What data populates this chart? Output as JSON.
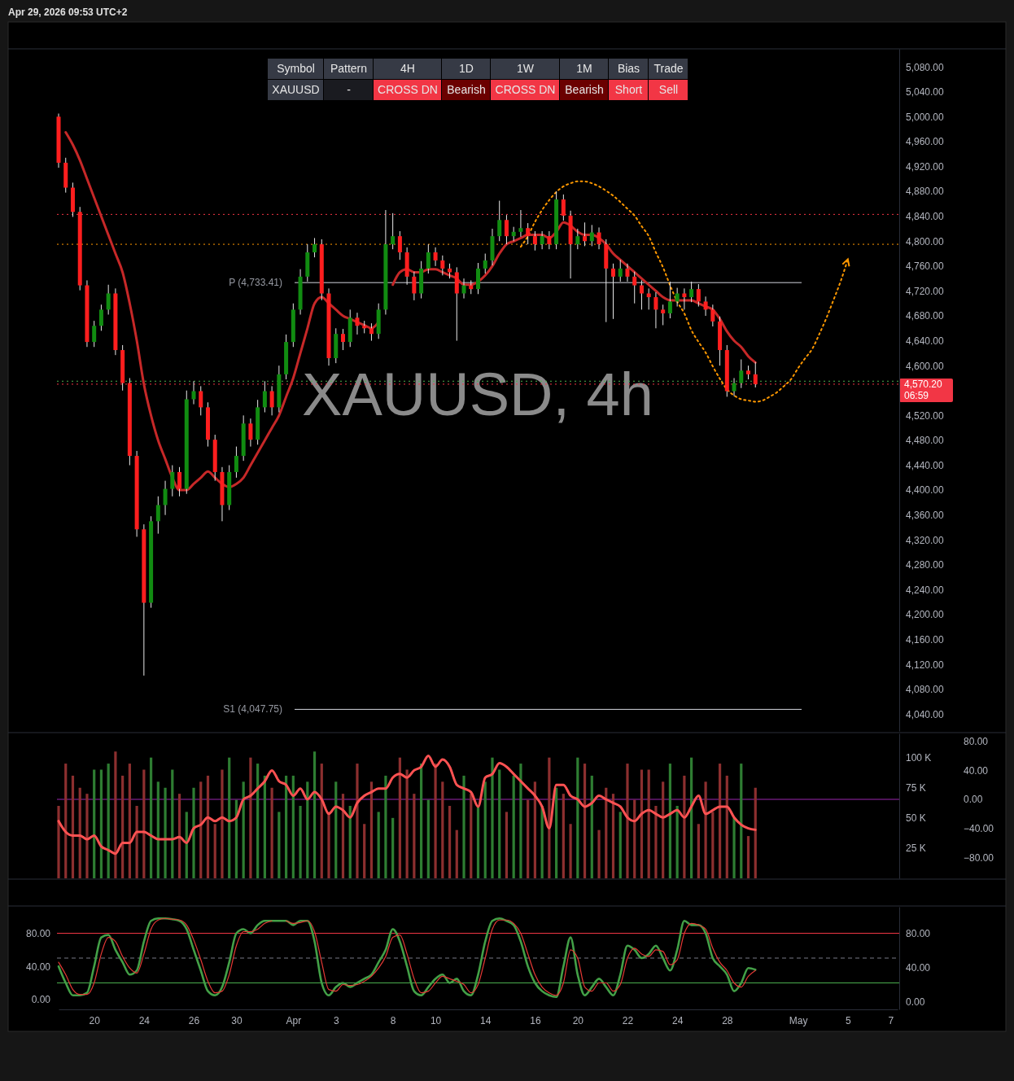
{
  "chart_data": [
    {
      "type": "candlestick",
      "title": "Apr 29, 2026 09:53 UTC+2",
      "tick_labels": "y",
      "annotations": [
        "Symbol",
        "Pattern",
        "4H",
        "1D",
        "1W",
        "1M",
        "Bias",
        "Trade",
        "XAUUSD",
        "-",
        "CROSS DN",
        "Bearish",
        "CROSS DN",
        "Bearish",
        "Short",
        "Sell",
        "XAUUSD, 4h",
        "06:59"
      ],
      "categories": [
        null,
        null,
        null,
        null,
        null,
        null,
        null,
        null,
        null,
        null,
        null,
        null,
        null,
        null,
        null,
        null,
        null,
        null,
        null,
        null,
        null,
        null,
        null,
        null,
        null,
        null,
        null,
        null,
        null,
        null,
        null,
        null,
        null,
        null,
        null,
        null,
        null,
        null,
        null,
        null,
        null,
        null,
        null,
        null,
        null,
        null,
        null,
        null,
        null,
        null,
        null,
        null,
        null,
        null,
        null,
        null,
        null,
        null,
        null,
        null,
        null,
        null,
        null,
        null,
        null,
        null,
        null,
        null,
        null,
        null,
        null,
        null,
        null,
        null,
        null,
        null,
        null,
        null,
        null,
        null,
        null,
        null,
        null,
        null,
        null,
        null,
        null,
        null,
        null,
        null,
        null,
        null,
        null,
        null,
        null,
        null,
        null,
        null,
        null,
        null,
        null,
        null,
        null,
        null,
        null,
        null,
        null,
        null,
        null,
        null,
        null,
        null,
        null,
        null,
        null,
        null,
        null,
        null,
        null
      ],
      "ylim": [
        4013,
        5109
      ],
      "yticks": [
        {
          "value": 4040,
          "label": "4,040.00"
        },
        {
          "value": 4080,
          "label": "4,080.00"
        },
        {
          "value": 4120,
          "label": "4,120.00"
        },
        {
          "value": 4160,
          "label": "4,160.00"
        },
        {
          "value": 4200,
          "label": "4,200.00"
        },
        {
          "value": 4240,
          "label": "4,240.00"
        },
        {
          "value": 4280,
          "label": "4,280.00"
        },
        {
          "value": 4320,
          "label": "4,320.00"
        },
        {
          "value": 4360,
          "label": "4,360.00"
        },
        {
          "value": 4400,
          "label": "4,400.00"
        },
        {
          "value": 4440,
          "label": "4,440.00"
        },
        {
          "value": 4480,
          "label": "4,480.00"
        },
        {
          "value": 4520,
          "label": "4,520.00"
        },
        {
          "value": 4600,
          "label": "4,600.00"
        },
        {
          "value": 4640,
          "label": "4,640.00"
        },
        {
          "value": 4680,
          "label": "4,680.00"
        },
        {
          "value": 4720,
          "label": "4,720.00"
        },
        {
          "value": 4760,
          "label": "4,760.00"
        },
        {
          "value": 4800,
          "label": "4,800.00"
        },
        {
          "value": 4840,
          "label": "4,840.00"
        },
        {
          "value": 4880,
          "label": "4,880.00"
        },
        {
          "value": 4920,
          "label": "4,920.00"
        },
        {
          "value": 4960,
          "label": "4,960.00"
        },
        {
          "value": 5000,
          "label": "5,000.00"
        },
        {
          "value": 5040,
          "label": "5,040.00"
        },
        {
          "value": 5080,
          "label": "5,080.00"
        }
      ],
      "ohlc": [
        [
          5000,
          5005,
          4918,
          4926
        ],
        [
          4926,
          4934,
          4878,
          4886
        ],
        [
          4886,
          4894,
          4839,
          4847
        ],
        [
          4847,
          4855,
          4721,
          4729
        ],
        [
          4729,
          4737,
          4630,
          4638
        ],
        [
          4638,
          4672,
          4630,
          4664
        ],
        [
          4664,
          4698,
          4656,
          4690
        ],
        [
          4690,
          4730,
          4682,
          4716
        ],
        [
          4716,
          4724,
          4617,
          4625
        ],
        [
          4625,
          4633,
          4560,
          4572
        ],
        [
          4572,
          4580,
          4440,
          4455
        ],
        [
          4455,
          4463,
          4325,
          4337
        ],
        [
          4337,
          4345,
          4102,
          4219
        ],
        [
          4219,
          4358,
          4211,
          4350
        ],
        [
          4350,
          4390,
          4330,
          4376
        ],
        [
          4376,
          4415,
          4360,
          4402
        ],
        [
          4402,
          4440,
          4390,
          4429
        ],
        [
          4429,
          4437,
          4390,
          4402
        ],
        [
          4402,
          4560,
          4394,
          4546
        ],
        [
          4546,
          4575,
          4538,
          4559
        ],
        [
          4559,
          4567,
          4520,
          4533
        ],
        [
          4533,
          4541,
          4470,
          4481
        ],
        [
          4481,
          4489,
          4415,
          4429
        ],
        [
          4429,
          4437,
          4350,
          4376
        ],
        [
          4376,
          4440,
          4368,
          4429
        ],
        [
          4429,
          4470,
          4420,
          4455
        ],
        [
          4455,
          4520,
          4447,
          4507
        ],
        [
          4507,
          4515,
          4470,
          4481
        ],
        [
          4481,
          4545,
          4473,
          4533
        ],
        [
          4533,
          4575,
          4525,
          4559
        ],
        [
          4559,
          4567,
          4520,
          4533
        ],
        [
          4533,
          4600,
          4525,
          4586
        ],
        [
          4586,
          4650,
          4578,
          4638
        ],
        [
          4638,
          4700,
          4630,
          4690
        ],
        [
          4690,
          4755,
          4682,
          4743
        ],
        [
          4743,
          4795,
          4735,
          4782
        ],
        [
          4782,
          4805,
          4774,
          4795
        ],
        [
          4795,
          4803,
          4705,
          4716
        ],
        [
          4716,
          4724,
          4600,
          4612
        ],
        [
          4612,
          4660,
          4604,
          4651
        ],
        [
          4651,
          4659,
          4625,
          4638
        ],
        [
          4638,
          4690,
          4630,
          4677
        ],
        [
          4677,
          4685,
          4650,
          4664
        ],
        [
          4664,
          4672,
          4652,
          4660
        ],
        [
          4660,
          4668,
          4640,
          4651
        ],
        [
          4651,
          4700,
          4643,
          4690
        ],
        [
          4690,
          4850,
          4682,
          4795
        ],
        [
          4795,
          4845,
          4787,
          4808
        ],
        [
          4808,
          4816,
          4770,
          4782
        ],
        [
          4782,
          4790,
          4730,
          4743
        ],
        [
          4743,
          4751,
          4705,
          4716
        ],
        [
          4716,
          4768,
          4708,
          4756
        ],
        [
          4756,
          4795,
          4748,
          4782
        ],
        [
          4782,
          4790,
          4760,
          4769
        ],
        [
          4769,
          4777,
          4745,
          4756
        ],
        [
          4756,
          4764,
          4740,
          4750
        ],
        [
          4750,
          4758,
          4640,
          4716
        ],
        [
          4716,
          4740,
          4708,
          4729
        ],
        [
          4729,
          4737,
          4715,
          4723
        ],
        [
          4723,
          4765,
          4715,
          4756
        ],
        [
          4756,
          4780,
          4748,
          4769
        ],
        [
          4769,
          4820,
          4761,
          4808
        ],
        [
          4808,
          4865,
          4800,
          4834
        ],
        [
          4834,
          4842,
          4795,
          4808
        ],
        [
          4808,
          4823,
          4800,
          4815
        ],
        [
          4815,
          4850,
          4807,
          4821
        ],
        [
          4821,
          4829,
          4795,
          4808
        ],
        [
          4808,
          4816,
          4785,
          4795
        ],
        [
          4795,
          4816,
          4787,
          4808
        ],
        [
          4808,
          4816,
          4787,
          4795
        ],
        [
          4795,
          4880,
          4787,
          4867
        ],
        [
          4867,
          4875,
          4833,
          4841
        ],
        [
          4841,
          4849,
          4740,
          4795
        ],
        [
          4795,
          4820,
          4787,
          4808
        ],
        [
          4808,
          4830,
          4792,
          4800
        ],
        [
          4800,
          4826,
          4792,
          4814
        ],
        [
          4814,
          4822,
          4787,
          4795
        ],
        [
          4795,
          4803,
          4670,
          4756
        ],
        [
          4756,
          4764,
          4675,
          4743
        ],
        [
          4743,
          4770,
          4735,
          4756
        ],
        [
          4756,
          4764,
          4735,
          4743
        ],
        [
          4743,
          4751,
          4700,
          4729
        ],
        [
          4729,
          4737,
          4690,
          4716
        ],
        [
          4716,
          4724,
          4690,
          4710
        ],
        [
          4710,
          4718,
          4660,
          4690
        ],
        [
          4690,
          4698,
          4665,
          4684
        ],
        [
          4684,
          4735,
          4676,
          4703
        ],
        [
          4703,
          4725,
          4695,
          4716
        ],
        [
          4716,
          4724,
          4690,
          4710
        ],
        [
          4710,
          4735,
          4702,
          4723
        ],
        [
          4723,
          4731,
          4695,
          4703
        ],
        [
          4703,
          4711,
          4680,
          4690
        ],
        [
          4690,
          4698,
          4663,
          4671
        ],
        [
          4671,
          4679,
          4600,
          4625
        ],
        [
          4625,
          4633,
          4550,
          4559
        ],
        [
          4559,
          4580,
          4551,
          4572
        ],
        [
          4572,
          4610,
          4564,
          4592
        ],
        [
          4592,
          4600,
          4578,
          4586
        ],
        [
          4586,
          4606,
          4565,
          4570.2
        ],
        null,
        null,
        null,
        null,
        null,
        null,
        null,
        null,
        null,
        null,
        null,
        null,
        null,
        null,
        null,
        null,
        null,
        null,
        null,
        null
      ],
      "series": [
        {
          "type": "line",
          "color": "#c62828",
          "values": [
            null,
            4975,
            4955,
            4930,
            4900,
            4870,
            4840,
            4810,
            4780,
            4750,
            4700,
            4640,
            4570,
            4520,
            4480,
            4450,
            4420,
            4400,
            4400,
            4410,
            4420,
            4430,
            4420,
            4410,
            4405,
            4410,
            4420,
            4440,
            4460,
            4480,
            4500,
            4520,
            4550,
            4580,
            4620,
            4660,
            4700,
            4710,
            4700,
            4690,
            4680,
            4675,
            4670,
            4665,
            4660,
            4670,
            null,
            4730,
            4750,
            4755,
            4750,
            4750,
            4755,
            4755,
            4750,
            4745,
            4740,
            4730,
            4730,
            4735,
            4745,
            4760,
            4780,
            4795,
            4800,
            4805,
            4810,
            4810,
            4810,
            4805,
            4815,
            4830,
            4825,
            4815,
            4810,
            4810,
            4805,
            4795,
            4780,
            4770,
            4760,
            4750,
            4740,
            4730,
            4720,
            4710,
            4705,
            4705,
            4705,
            4705,
            4700,
            4695,
            4690,
            4675,
            4655,
            4640,
            4630,
            4615,
            4605,
            null,
            null,
            null,
            null,
            null,
            null,
            null,
            null,
            null,
            null,
            null,
            null,
            null,
            null,
            null,
            null,
            null,
            null,
            null,
            null
          ]
        },
        {
          "type": "line",
          "color": "#ff9800",
          "line_style": "dotted",
          "values": [
            null,
            null,
            null,
            null,
            null,
            null,
            null,
            null,
            null,
            null,
            null,
            null,
            null,
            null,
            null,
            null,
            null,
            null,
            null,
            null,
            null,
            null,
            null,
            null,
            null,
            null,
            null,
            null,
            null,
            null,
            null,
            null,
            null,
            null,
            null,
            null,
            null,
            null,
            null,
            null,
            null,
            null,
            null,
            null,
            null,
            null,
            null,
            null,
            null,
            null,
            null,
            null,
            null,
            null,
            null,
            null,
            null,
            null,
            null,
            null,
            null,
            null,
            null,
            null,
            null,
            4791,
            4808,
            4831,
            4850,
            4866,
            4879,
            4888,
            4893,
            4896,
            4896,
            4893,
            4888,
            4881,
            4873,
            4863,
            4852,
            4841,
            4824,
            4808,
            4782,
            4758,
            4729,
            4703,
            4684,
            4657,
            4638,
            4621,
            4599,
            4579,
            4562,
            4552,
            4546,
            4544,
            4542,
            4544,
            4550,
            4557,
            4567,
            4578,
            4596,
            4612,
            4627,
            4651,
            4677,
            4706,
            4736,
            4771,
            null,
            null,
            null,
            null,
            null,
            null,
            null
          ]
        }
      ],
      "ref_lines": [
        {
          "axis": "y",
          "value": 4843,
          "color": "#f23645",
          "line_style": "dotted"
        },
        {
          "axis": "y",
          "value": 4795,
          "color": "#ff9800",
          "line_style": "dotted"
        },
        {
          "axis": "y",
          "value": 4733.41,
          "label": "P (4,733.41)",
          "color": "#d1d4dc",
          "line_style": "solid"
        },
        {
          "axis": "y",
          "value": 4575,
          "color": "#4caf50",
          "line_style": "dotted"
        },
        {
          "axis": "y",
          "value": 4570.2,
          "label": "4,570.20",
          "color": "#f23645",
          "line_style": "dotted"
        },
        {
          "axis": "y",
          "value": 4047.75,
          "label": "S1 (4,047.75)",
          "color": "#d1d4dc",
          "line_style": "solid"
        }
      ]
    },
    {
      "type": "bar",
      "tick_labels": "y",
      "categories": [
        null,
        null,
        null,
        null,
        null,
        null,
        null,
        null,
        null,
        null,
        null,
        null,
        null,
        null,
        null,
        null,
        null,
        null,
        null,
        null,
        null,
        null,
        null,
        null,
        null,
        null,
        null,
        null,
        null,
        null,
        null,
        null,
        null,
        null,
        null,
        null,
        null,
        null,
        null,
        null,
        null,
        null,
        null,
        null,
        null,
        null,
        null,
        null,
        null,
        null,
        null,
        null,
        null,
        null,
        null,
        null,
        null,
        null,
        null,
        null,
        null,
        null,
        null,
        null,
        null,
        null,
        null,
        null,
        null,
        null,
        null,
        null,
        null,
        null,
        null,
        null,
        null,
        null,
        null,
        null,
        null,
        null,
        null,
        null,
        null,
        null,
        null,
        null,
        null,
        null,
        null,
        null,
        null,
        null,
        null,
        null,
        null,
        null,
        null,
        null,
        null,
        null,
        null,
        null,
        null,
        null,
        null,
        null,
        null,
        null,
        null,
        null,
        null,
        null,
        null,
        null,
        null,
        null,
        null
      ],
      "ylim": [
        0,
        120000
      ],
      "yticks": [
        {
          "value": 25000,
          "label": "25 K"
        },
        {
          "value": 50000,
          "label": "50 K"
        },
        {
          "value": 75000,
          "label": "75 K"
        },
        {
          "value": 100000,
          "label": "100 K"
        }
      ],
      "y2lim": [
        -109,
        91
      ],
      "y2ticks": [
        {
          "value": 80,
          "label": "80.00"
        },
        {
          "value": 40,
          "label": "40.00"
        },
        {
          "value": 0,
          "label": "0.00"
        },
        {
          "value": -40,
          "label": "−40.00"
        },
        {
          "value": -80,
          "label": "−80.00"
        }
      ],
      "series": [
        {
          "type": "bar",
          "values": [
            60000,
            95000,
            85000,
            75000,
            70000,
            90000,
            90000,
            95000,
            105000,
            85000,
            95000,
            60000,
            90000,
            100000,
            80000,
            75000,
            90000,
            70000,
            55000,
            75000,
            80000,
            85000,
            45000,
            90000,
            100000,
            65000,
            80000,
            100000,
            95000,
            85000,
            75000,
            55000,
            85000,
            85000,
            60000,
            80000,
            105000,
            95000,
            55000,
            80000,
            70000,
            60000,
            95000,
            45000,
            80000,
            55000,
            85000,
            50000,
            100000,
            90000,
            70000,
            95000,
            65000,
            95000,
            80000,
            60000,
            40000,
            85000,
            70000,
            60000,
            80000,
            100000,
            90000,
            55000,
            85000,
            95000,
            65000,
            80000,
            60000,
            100000,
            75000,
            70000,
            45000,
            100000,
            95000,
            85000,
            40000,
            75000,
            70000,
            55000,
            95000,
            65000,
            90000,
            90000,
            60000,
            80000,
            95000,
            60000,
            85000,
            100000,
            45000,
            80000,
            55000,
            95000,
            85000,
            50000,
            95000,
            35000,
            75000,
            null,
            null,
            null,
            null,
            null,
            null,
            null,
            null,
            null,
            null,
            null,
            null,
            null,
            null,
            null,
            null,
            null,
            null,
            null,
            null
          ],
          "colors": [
            "#8c2f2f",
            "#8c2f2f",
            "#8c2f2f",
            "#8c2f2f",
            "#8c2f2f",
            "#2e7d32",
            "#2e7d32",
            "#2e7d32",
            "#8c2f2f",
            "#8c2f2f",
            "#8c2f2f",
            "#8c2f2f",
            "#8c2f2f",
            "#2e7d32",
            "#2e7d32",
            "#2e7d32",
            "#2e7d32",
            "#8c2f2f",
            "#2e7d32",
            "#2e7d32",
            "#8c2f2f",
            "#8c2f2f",
            "#8c2f2f",
            "#8c2f2f",
            "#2e7d32",
            "#2e7d32",
            "#2e7d32",
            "#8c2f2f",
            "#2e7d32",
            "#2e7d32",
            "#8c2f2f",
            "#2e7d32",
            "#2e7d32",
            "#2e7d32",
            "#2e7d32",
            "#2e7d32",
            "#2e7d32",
            "#8c2f2f",
            "#8c2f2f",
            "#2e7d32",
            "#8c2f2f",
            "#2e7d32",
            "#8c2f2f",
            "#8c2f2f",
            "#8c2f2f",
            "#2e7d32",
            "#2e7d32",
            "#2e7d32",
            "#8c2f2f",
            "#8c2f2f",
            "#8c2f2f",
            "#2e7d32",
            "#2e7d32",
            "#8c2f2f",
            "#8c2f2f",
            "#8c2f2f",
            "#8c2f2f",
            "#2e7d32",
            "#8c2f2f",
            "#2e7d32",
            "#2e7d32",
            "#2e7d32",
            "#2e7d32",
            "#8c2f2f",
            "#2e7d32",
            "#2e7d32",
            "#8c2f2f",
            "#8c2f2f",
            "#2e7d32",
            "#8c2f2f",
            "#2e7d32",
            "#8c2f2f",
            "#8c2f2f",
            "#2e7d32",
            "#8c2f2f",
            "#2e7d32",
            "#8c2f2f",
            "#8c2f2f",
            "#8c2f2f",
            "#2e7d32",
            "#8c2f2f",
            "#8c2f2f",
            "#8c2f2f",
            "#8c2f2f",
            "#8c2f2f",
            "#8c2f2f",
            "#2e7d32",
            "#2e7d32",
            "#8c2f2f",
            "#2e7d32",
            "#8c2f2f",
            "#8c2f2f",
            "#8c2f2f",
            "#8c2f2f",
            "#8c2f2f",
            "#2e7d32",
            "#2e7d32",
            "#8c2f2f",
            "#8c2f2f",
            null,
            null,
            null,
            null,
            null,
            null,
            null,
            null,
            null,
            null,
            null,
            null,
            null,
            null,
            null,
            null,
            null,
            null,
            null,
            null
          ]
        },
        {
          "type": "line",
          "axis": "y2",
          "color": "#ff5252",
          "values": [
            -30,
            -45,
            -50,
            -50,
            -55,
            -50,
            -65,
            -70,
            -75,
            -60,
            -60,
            -45,
            -45,
            -50,
            -55,
            -55,
            -55,
            -52,
            -60,
            -40,
            -35,
            -25,
            -30,
            -25,
            -30,
            -25,
            0,
            5,
            15,
            25,
            40,
            25,
            20,
            5,
            15,
            0,
            10,
            0,
            -20,
            -10,
            -15,
            -25,
            -5,
            5,
            10,
            15,
            15,
            30,
            35,
            30,
            40,
            45,
            60,
            45,
            55,
            45,
            20,
            15,
            10,
            -10,
            30,
            35,
            50,
            45,
            35,
            25,
            15,
            5,
            -10,
            -40,
            20,
            20,
            5,
            0,
            -10,
            -5,
            5,
            0,
            -5,
            -10,
            -25,
            -30,
            -20,
            -15,
            -20,
            -25,
            -20,
            -15,
            -25,
            -10,
            5,
            -20,
            -15,
            -10,
            -10,
            -25,
            -35,
            -40,
            -42,
            null,
            null,
            null,
            null,
            null,
            null,
            null,
            null,
            null,
            null,
            null,
            null,
            null,
            null,
            null,
            null,
            null,
            null,
            null,
            null
          ]
        }
      ],
      "ref_lines": [
        {
          "axis": "y2",
          "value": 0,
          "color": "#9c27b0",
          "line_style": "solid"
        }
      ]
    },
    {
      "type": "line",
      "categories": [
        null,
        null,
        null,
        null,
        null,
        "20",
        null,
        null,
        null,
        null,
        null,
        null,
        "24",
        null,
        null,
        null,
        null,
        null,
        null,
        "26",
        null,
        null,
        null,
        null,
        null,
        "30",
        null,
        null,
        null,
        null,
        null,
        null,
        null,
        "Apr",
        null,
        null,
        null,
        null,
        null,
        "3",
        null,
        null,
        null,
        null,
        null,
        null,
        null,
        "8",
        null,
        null,
        null,
        null,
        null,
        "10",
        null,
        null,
        null,
        null,
        null,
        null,
        "14",
        null,
        null,
        null,
        null,
        null,
        null,
        "16",
        null,
        null,
        null,
        null,
        null,
        "20",
        null,
        null,
        null,
        null,
        null,
        null,
        "22",
        null,
        null,
        null,
        null,
        null,
        null,
        "24",
        null,
        null,
        null,
        null,
        null,
        null,
        "28",
        null,
        null,
        null,
        null,
        null,
        null,
        null,
        null,
        null,
        "May",
        null,
        null,
        null,
        null,
        null,
        null,
        "5",
        null,
        null,
        null,
        null,
        null,
        "7",
        null
      ],
      "ylim": [
        -12,
        112
      ],
      "yticks": [
        {
          "value": 0,
          "label": "0.00"
        },
        {
          "value": 40,
          "label": "40.00"
        },
        {
          "value": 80,
          "label": "80.00"
        }
      ],
      "y2lim": [
        -9,
        111
      ],
      "y2ticks": [
        {
          "value": 0,
          "label": "0.00"
        },
        {
          "value": 40,
          "label": "40.00"
        },
        {
          "value": 80,
          "label": "80.00"
        }
      ],
      "series": [
        {
          "color": "#43a047",
          "values": [
            40,
            20,
            5,
            5,
            8,
            40,
            75,
            78,
            60,
            45,
            30,
            35,
            70,
            95,
            98,
            98,
            97,
            95,
            85,
            60,
            35,
            10,
            5,
            15,
            45,
            80,
            85,
            80,
            90,
            95,
            95,
            95,
            95,
            90,
            95,
            95,
            70,
            20,
            5,
            15,
            20,
            15,
            20,
            25,
            30,
            45,
            60,
            85,
            70,
            40,
            10,
            5,
            15,
            25,
            30,
            20,
            25,
            10,
            5,
            30,
            70,
            95,
            98,
            95,
            90,
            70,
            40,
            20,
            10,
            5,
            3,
            40,
            75,
            30,
            5,
            15,
            25,
            15,
            5,
            30,
            65,
            60,
            50,
            55,
            65,
            50,
            35,
            60,
            95,
            90,
            90,
            80,
            50,
            40,
            30,
            10,
            20,
            38,
            36,
            null,
            null,
            null,
            null,
            null,
            null,
            null,
            null,
            null,
            null,
            null,
            null,
            null,
            null,
            null,
            null,
            null,
            null,
            null,
            null
          ]
        },
        {
          "color": "#e53935",
          "values": [
            45,
            30,
            12,
            6,
            6,
            20,
            55,
            75,
            70,
            52,
            38,
            32,
            55,
            85,
            96,
            98,
            97,
            96,
            90,
            72,
            48,
            22,
            8,
            10,
            30,
            65,
            82,
            82,
            85,
            92,
            95,
            null,
            95,
            92,
            93,
            95,
            82,
            45,
            12,
            10,
            18,
            17,
            18,
            22,
            28,
            38,
            52,
            75,
            78,
            55,
            25,
            8,
            10,
            20,
            28,
            25,
            22,
            18,
            8,
            18,
            50,
            85,
            96,
            96,
            92,
            80,
            55,
            30,
            15,
            8,
            5,
            20,
            60,
            50,
            15,
            10,
            20,
            20,
            10,
            18,
            50,
            62,
            55,
            52,
            60,
            58,
            42,
            48,
            80,
            92,
            90,
            85,
            62,
            45,
            35,
            20,
            15,
            28,
            35,
            null,
            null,
            null,
            null,
            null,
            null,
            null,
            null,
            null,
            null,
            null,
            null,
            null,
            null,
            null,
            null,
            null,
            null,
            null,
            null
          ]
        }
      ],
      "ref_lines": [
        {
          "axis": "y",
          "value": 80,
          "color": "#f23645",
          "line_style": "solid"
        },
        {
          "axis": "y",
          "value": 50,
          "color": "#787b86",
          "line_style": "dashed"
        },
        {
          "axis": "y",
          "value": 20,
          "color": "#4caf50",
          "line_style": "solid"
        }
      ]
    }
  ]
}
